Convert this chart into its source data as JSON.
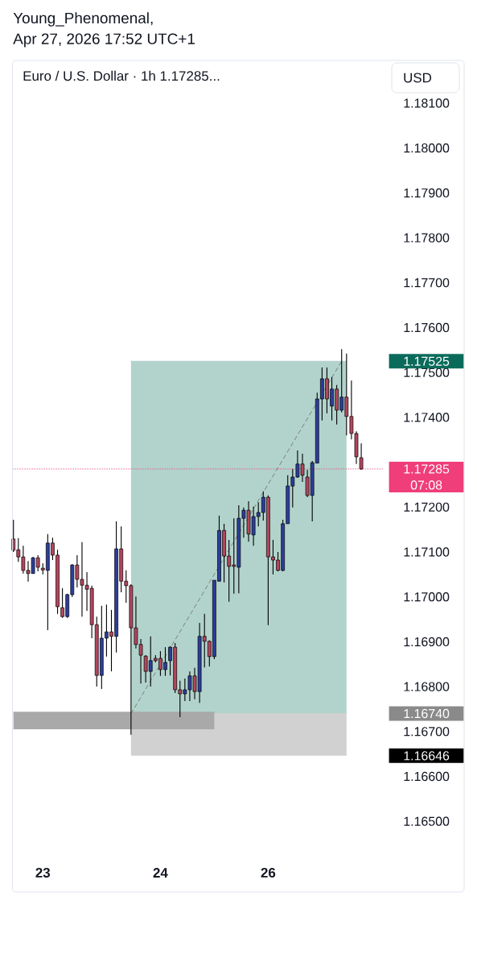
{
  "chart_data": {
    "type": "candlestick",
    "title": "Euro / U.S. Dollar · 1h 1.17285...",
    "ylabel": "USD",
    "annotations": [
      "Young_Phenomenal,",
      "Apr 27, 2026 17:52 UTC+1",
      "07:08",
      "1.17525",
      "1.16740",
      "1.16646"
    ],
    "categories": [
      null,
      null,
      null,
      null,
      null,
      null,
      "23",
      null,
      null,
      null,
      null,
      null,
      null,
      null,
      null,
      null,
      null,
      null,
      null,
      null,
      null,
      null,
      null,
      null,
      null,
      null,
      null,
      null,
      null,
      null,
      "24",
      null,
      null,
      null,
      null,
      null,
      null,
      null,
      null,
      null,
      null,
      null,
      null,
      null,
      null,
      null,
      null,
      null,
      null,
      null,
      null,
      null,
      "26",
      null,
      null,
      null,
      null,
      null,
      null,
      null,
      null,
      null,
      null,
      null,
      null,
      null,
      null,
      null,
      null,
      null,
      null,
      null
    ],
    "ohlc": [
      [
        1.17129,
        1.17172,
        1.171,
        1.17104
      ],
      [
        1.17105,
        1.17131,
        1.17078,
        1.17089
      ],
      [
        1.17089,
        1.17114,
        1.17052,
        1.17059
      ],
      [
        1.17059,
        1.1708,
        1.17034,
        1.17052
      ],
      [
        1.17052,
        1.17089,
        1.17052,
        1.17087
      ],
      [
        1.17087,
        1.17093,
        1.17057,
        1.17066
      ],
      [
        1.17064,
        1.17075,
        1.1705,
        1.1706
      ],
      [
        1.17059,
        1.1714,
        1.16926,
        1.1712
      ],
      [
        1.1712,
        1.17132,
        1.17082,
        1.17093
      ],
      [
        1.17093,
        1.17105,
        1.16962,
        1.16978
      ],
      [
        1.16976,
        1.17019,
        1.16953,
        1.16956
      ],
      [
        1.16956,
        1.17007,
        1.16953,
        1.17005
      ],
      [
        1.17005,
        1.17073,
        1.17,
        1.17071
      ],
      [
        1.17071,
        1.17093,
        1.17021,
        1.17039
      ],
      [
        1.17039,
        1.17122,
        1.16956,
        1.17026
      ],
      [
        1.17026,
        1.17055,
        1.16969,
        1.17017
      ],
      [
        1.17019,
        1.17025,
        1.16908,
        1.16938
      ],
      [
        1.16938,
        1.16956,
        1.168,
        1.16825
      ],
      [
        1.16825,
        1.1698,
        1.16795,
        1.16908
      ],
      [
        1.16908,
        1.16983,
        1.16867,
        1.16922
      ],
      [
        1.16922,
        1.16971,
        1.16834,
        1.16912
      ],
      [
        1.16912,
        1.17168,
        1.16876,
        1.17107
      ],
      [
        1.17107,
        1.17157,
        1.1701,
        1.17035
      ],
      [
        1.17035,
        1.17059,
        1.16987,
        1.17025
      ],
      [
        1.17025,
        1.17028,
        1.16693,
        1.16931
      ],
      [
        1.16931,
        1.17001,
        1.16885,
        1.16894
      ],
      [
        1.16894,
        1.16906,
        1.16807,
        1.1687
      ],
      [
        1.16868,
        1.1687,
        1.16809,
        1.16834
      ],
      [
        1.16834,
        1.16912,
        1.168,
        1.16858
      ],
      [
        1.16863,
        1.1687,
        1.16854,
        1.16858
      ],
      [
        1.16863,
        1.16879,
        1.16824,
        1.16838
      ],
      [
        1.16838,
        1.16888,
        1.16824,
        1.16854
      ],
      [
        1.16858,
        1.1689,
        1.16825,
        1.16888
      ],
      [
        1.16888,
        1.16897,
        1.16786,
        1.16793
      ],
      [
        1.16793,
        1.16813,
        1.16732,
        1.16784
      ],
      [
        1.16784,
        1.16818,
        1.16768,
        1.16793
      ],
      [
        1.16793,
        1.16834,
        1.16768,
        1.16824
      ],
      [
        1.16824,
        1.16842,
        1.16772,
        1.16789
      ],
      [
        1.16789,
        1.16942,
        1.16764,
        1.16912
      ],
      [
        1.16912,
        1.16962,
        1.16843,
        1.16901
      ],
      [
        1.16901,
        1.16903,
        1.16845,
        1.16867
      ],
      [
        1.16867,
        1.17037,
        1.16861,
        1.17037
      ],
      [
        1.17035,
        1.17181,
        1.17034,
        1.17148
      ],
      [
        1.17148,
        1.17163,
        1.17032,
        1.17091
      ],
      [
        1.17091,
        1.17127,
        1.16989,
        1.17068
      ],
      [
        1.17071,
        1.17175,
        1.17007,
        1.17068
      ],
      [
        1.17066,
        1.17204,
        1.17008,
        1.17175
      ],
      [
        1.17175,
        1.17199,
        1.17132,
        1.17193
      ],
      [
        1.17193,
        1.17213,
        1.17123,
        1.1714
      ],
      [
        1.17138,
        1.17201,
        1.17114,
        1.17179
      ],
      [
        1.17179,
        1.17211,
        1.17157,
        1.17188
      ],
      [
        1.17188,
        1.17235,
        1.1717,
        1.17222
      ],
      [
        1.17222,
        1.17226,
        1.16937,
        1.17089
      ],
      [
        1.17089,
        1.17127,
        1.1705,
        1.17082
      ],
      [
        1.17082,
        1.171,
        1.17057,
        1.17059
      ],
      [
        1.17059,
        1.17172,
        1.17057,
        1.17163
      ],
      [
        1.17163,
        1.17271,
        1.17163,
        1.17247
      ],
      [
        1.17247,
        1.17285,
        1.17199,
        1.17267
      ],
      [
        1.17267,
        1.17326,
        1.17265,
        1.17296
      ],
      [
        1.17296,
        1.17319,
        1.17256,
        1.17271
      ],
      [
        1.17267,
        1.17283,
        1.17222,
        1.17226
      ],
      [
        1.17226,
        1.17303,
        1.17168,
        1.17299
      ],
      [
        1.17298,
        1.17455,
        1.17298,
        1.17441
      ],
      [
        1.17441,
        1.17511,
        1.17393,
        1.17486
      ],
      [
        1.17486,
        1.17511,
        1.17409,
        1.17441
      ],
      [
        1.17425,
        1.1749,
        1.17393,
        1.17463
      ],
      [
        1.17463,
        1.17472,
        1.17384,
        1.17416
      ],
      [
        1.17416,
        1.17552,
        1.17411,
        1.17445
      ],
      [
        1.17445,
        1.17542,
        1.1736,
        1.17402
      ],
      [
        1.17402,
        1.17482,
        1.17351,
        1.17364
      ],
      [
        1.17364,
        1.17369,
        1.17296,
        1.17312
      ],
      [
        1.1731,
        1.17342,
        1.17283,
        1.17285
      ]
    ],
    "colors": [
      "#b4465e",
      "#b4465e",
      "#b4465e",
      "#b4465e",
      "#2c3e9c",
      "#b4465e",
      "#b4465e",
      "#2c3e9c",
      "#b4465e",
      "#b4465e",
      "#b4465e",
      "#2c3e9c",
      "#2c3e9c",
      "#b4465e",
      "#b4465e",
      "#b4465e",
      "#b4465e",
      "#b4465e",
      "#2c3e9c",
      "#2c3e9c",
      "#b4465e",
      "#2c3e9c",
      "#b4465e",
      "#b4465e",
      "#b4465e",
      "#b4465e",
      "#b4465e",
      "#b4465e",
      "#2c3e9c",
      "#b4465e",
      "#b4465e",
      "#2c3e9c",
      "#2c3e9c",
      "#b4465e",
      "#b4465e",
      "#2c3e9c",
      "#2c3e9c",
      "#b4465e",
      "#2c3e9c",
      "#b4465e",
      "#b4465e",
      "#2c3e9c",
      "#2c3e9c",
      "#b4465e",
      "#b4465e",
      "#b4465e",
      "#2c3e9c",
      "#2c3e9c",
      "#b4465e",
      "#2c3e9c",
      "#2c3e9c",
      "#2c3e9c",
      "#b4465e",
      "#b4465e",
      "#b4465e",
      "#2c3e9c",
      "#2c3e9c",
      "#2c3e9c",
      "#2c3e9c",
      "#b4465e",
      "#b4465e",
      "#2c3e9c",
      "#2c3e9c",
      "#2c3e9c",
      "#b4465e",
      "#2c3e9c",
      "#b4465e",
      "#2c3e9c",
      "#b4465e",
      "#b4465e",
      "#b4465e",
      "#b4465e"
    ],
    "series": [
      {
        "type": "line",
        "color": "#b2d3cb",
        "values": [
          null,
          null,
          null,
          null,
          null,
          null,
          null,
          null,
          null,
          null,
          null,
          null,
          null,
          null,
          null,
          null,
          null,
          null,
          null,
          null,
          null,
          null,
          null,
          null,
          1.17525,
          1.17525,
          1.17525,
          1.17525,
          1.17525,
          1.17525,
          1.17525,
          1.17525,
          1.17525,
          1.17525,
          1.17525,
          1.17525,
          1.17525,
          1.17525,
          1.17525,
          1.17525,
          1.17525,
          1.17525,
          1.17525,
          1.17525,
          1.17525,
          1.17525,
          1.17525,
          1.17525,
          1.17525,
          1.17525,
          1.17525,
          1.17525,
          1.17525,
          1.17525,
          1.17525,
          1.17525,
          1.17525,
          1.17525,
          1.17525,
          1.17525,
          1.17525,
          1.17525,
          1.17525,
          1.17525,
          1.17525,
          1.17525,
          1.17525,
          1.17525,
          1.17525,
          null,
          null,
          null
        ],
        "upper": [
          null,
          null,
          null,
          null,
          null,
          null,
          null,
          null,
          null,
          null,
          null,
          null,
          null,
          null,
          null,
          null,
          null,
          null,
          null,
          null,
          null,
          null,
          null,
          null,
          1.17525,
          1.17525,
          1.17525,
          1.17525,
          1.17525,
          1.17525,
          1.17525,
          1.17525,
          1.17525,
          1.17525,
          1.17525,
          1.17525,
          1.17525,
          1.17525,
          1.17525,
          1.17525,
          1.17525,
          1.17525,
          1.17525,
          1.17525,
          1.17525,
          1.17525,
          1.17525,
          1.17525,
          1.17525,
          1.17525,
          1.17525,
          1.17525,
          1.17525,
          1.17525,
          1.17525,
          1.17525,
          1.17525,
          1.17525,
          1.17525,
          1.17525,
          1.17525,
          1.17525,
          1.17525,
          1.17525,
          1.17525,
          1.17525,
          1.17525,
          1.17525,
          1.17525,
          null,
          null,
          null
        ],
        "lower": [
          null,
          null,
          null,
          null,
          null,
          null,
          null,
          null,
          null,
          null,
          null,
          null,
          null,
          null,
          null,
          null,
          null,
          null,
          null,
          null,
          null,
          null,
          null,
          null,
          1.1674,
          1.1674,
          1.1674,
          1.1674,
          1.1674,
          1.1674,
          1.1674,
          1.1674,
          1.1674,
          1.1674,
          1.1674,
          1.1674,
          1.1674,
          1.1674,
          1.1674,
          1.1674,
          1.1674,
          1.1674,
          1.1674,
          1.1674,
          1.1674,
          1.1674,
          1.1674,
          1.1674,
          1.1674,
          1.1674,
          1.1674,
          1.1674,
          1.1674,
          1.1674,
          1.1674,
          1.1674,
          1.1674,
          1.1674,
          1.1674,
          1.1674,
          1.1674,
          1.1674,
          1.1674,
          1.1674,
          1.1674,
          1.1674,
          1.1674,
          1.1674,
          1.1674,
          null,
          null,
          null
        ]
      },
      {
        "type": "line",
        "color": "#d1d1d1",
        "values": [
          null,
          null,
          null,
          null,
          null,
          null,
          null,
          null,
          null,
          null,
          null,
          null,
          null,
          null,
          null,
          null,
          null,
          null,
          null,
          null,
          null,
          null,
          null,
          null,
          1.1674,
          1.1674,
          1.1674,
          1.1674,
          1.1674,
          1.1674,
          1.1674,
          1.1674,
          1.1674,
          1.1674,
          1.1674,
          1.1674,
          1.1674,
          1.1674,
          1.1674,
          1.1674,
          1.1674,
          1.1674,
          1.1674,
          1.1674,
          1.1674,
          1.1674,
          1.1674,
          1.1674,
          1.1674,
          1.1674,
          1.1674,
          1.1674,
          1.1674,
          1.1674,
          1.1674,
          1.1674,
          1.1674,
          1.1674,
          1.1674,
          1.1674,
          1.1674,
          1.1674,
          1.1674,
          1.1674,
          1.1674,
          1.1674,
          1.1674,
          1.1674,
          1.1674,
          null,
          null,
          null
        ],
        "upper": [
          null,
          null,
          null,
          null,
          null,
          null,
          null,
          null,
          null,
          null,
          null,
          null,
          null,
          null,
          null,
          null,
          null,
          null,
          null,
          null,
          null,
          null,
          null,
          null,
          1.1674,
          1.1674,
          1.1674,
          1.1674,
          1.1674,
          1.1674,
          1.1674,
          1.1674,
          1.1674,
          1.1674,
          1.1674,
          1.1674,
          1.1674,
          1.1674,
          1.1674,
          1.1674,
          1.1674,
          1.1674,
          1.1674,
          1.1674,
          1.1674,
          1.1674,
          1.1674,
          1.1674,
          1.1674,
          1.1674,
          1.1674,
          1.1674,
          1.1674,
          1.1674,
          1.1674,
          1.1674,
          1.1674,
          1.1674,
          1.1674,
          1.1674,
          1.1674,
          1.1674,
          1.1674,
          1.1674,
          1.1674,
          1.1674,
          1.1674,
          1.1674,
          1.1674,
          null,
          null,
          null
        ],
        "lower": [
          null,
          null,
          null,
          null,
          null,
          null,
          null,
          null,
          null,
          null,
          null,
          null,
          null,
          null,
          null,
          null,
          null,
          null,
          null,
          null,
          null,
          null,
          null,
          null,
          1.16646,
          1.16646,
          1.16646,
          1.16646,
          1.16646,
          1.16646,
          1.16646,
          1.16646,
          1.16646,
          1.16646,
          1.16646,
          1.16646,
          1.16646,
          1.16646,
          1.16646,
          1.16646,
          1.16646,
          1.16646,
          1.16646,
          1.16646,
          1.16646,
          1.16646,
          1.16646,
          1.16646,
          1.16646,
          1.16646,
          1.16646,
          1.16646,
          1.16646,
          1.16646,
          1.16646,
          1.16646,
          1.16646,
          1.16646,
          1.16646,
          1.16646,
          1.16646,
          1.16646,
          1.16646,
          1.16646,
          1.16646,
          1.16646,
          1.16646,
          1.16646,
          1.16646,
          null,
          null,
          null
        ]
      },
      {
        "type": "line",
        "color": "#a9a9a9",
        "values": [
          1.16743,
          1.16743,
          1.16743,
          1.16743,
          1.16743,
          1.16743,
          1.16743,
          1.16743,
          1.16743,
          1.16743,
          1.16743,
          1.16743,
          1.16743,
          1.16743,
          1.16743,
          1.16743,
          1.16743,
          1.16743,
          1.16743,
          1.16743,
          1.16743,
          1.16743,
          1.16743,
          1.16743,
          1.16743,
          1.16743,
          1.16743,
          1.16743,
          1.16743,
          1.16743,
          1.16743,
          1.16743,
          1.16743,
          1.16743,
          1.16743,
          1.16743,
          1.16743,
          1.16743,
          1.16743,
          1.16743,
          1.16743,
          1.16743,
          null,
          null,
          null,
          null,
          null,
          null,
          null,
          null,
          null,
          null,
          null,
          null,
          null,
          null,
          null,
          null,
          null,
          null,
          null,
          null,
          null,
          null,
          null,
          null,
          null,
          null,
          null,
          null,
          null,
          null
        ],
        "upper": [
          1.16743,
          1.16743,
          1.16743,
          1.16743,
          1.16743,
          1.16743,
          1.16743,
          1.16743,
          1.16743,
          1.16743,
          1.16743,
          1.16743,
          1.16743,
          1.16743,
          1.16743,
          1.16743,
          1.16743,
          1.16743,
          1.16743,
          1.16743,
          1.16743,
          1.16743,
          1.16743,
          1.16743,
          1.16743,
          1.16743,
          1.16743,
          1.16743,
          1.16743,
          1.16743,
          1.16743,
          1.16743,
          1.16743,
          1.16743,
          1.16743,
          1.16743,
          1.16743,
          1.16743,
          1.16743,
          1.16743,
          1.16743,
          1.16743,
          null,
          null,
          null,
          null,
          null,
          null,
          null,
          null,
          null,
          null,
          null,
          null,
          null,
          null,
          null,
          null,
          null,
          null,
          null,
          null,
          null,
          null,
          null,
          null,
          null,
          null,
          null,
          null,
          null,
          null
        ],
        "lower": [
          1.16705,
          1.16705,
          1.16705,
          1.16705,
          1.16705,
          1.16705,
          1.16705,
          1.16705,
          1.16705,
          1.16705,
          1.16705,
          1.16705,
          1.16705,
          1.16705,
          1.16705,
          1.16705,
          1.16705,
          1.16705,
          1.16705,
          1.16705,
          1.16705,
          1.16705,
          1.16705,
          1.16705,
          1.16705,
          1.16705,
          1.16705,
          1.16705,
          1.16705,
          1.16705,
          1.16705,
          1.16705,
          1.16705,
          1.16705,
          1.16705,
          1.16705,
          1.16705,
          1.16705,
          1.16705,
          1.16705,
          1.16705,
          1.16705,
          null,
          null,
          null,
          null,
          null,
          null,
          null,
          null,
          null,
          null,
          null,
          null,
          null,
          null,
          null,
          null,
          null,
          null,
          null,
          null,
          null,
          null,
          null,
          null,
          null,
          null,
          null,
          null,
          null,
          null
        ]
      },
      {
        "type": "line",
        "color": "#7d7d7d",
        "line_style": "dashed",
        "values": [
          null,
          null,
          null,
          null,
          null,
          null,
          null,
          null,
          null,
          null,
          null,
          null,
          null,
          null,
          null,
          null,
          null,
          null,
          null,
          null,
          null,
          null,
          null,
          null,
          1.1674,
          null,
          null,
          null,
          null,
          null,
          null,
          null,
          null,
          null,
          null,
          null,
          null,
          null,
          null,
          null,
          null,
          null,
          null,
          null,
          null,
          null,
          null,
          null,
          null,
          null,
          null,
          null,
          null,
          null,
          null,
          null,
          null,
          null,
          null,
          null,
          null,
          null,
          null,
          null,
          null,
          null,
          null,
          1.17525,
          null,
          null,
          null,
          null
        ]
      }
    ],
    "ref_lines": [
      {
        "axis": "y",
        "value": 1.17285,
        "label": "1.17285",
        "color": "#ef3e7a",
        "line_style": "dotted"
      }
    ],
    "ylim": [
      1.165,
      1.181
    ],
    "yticks": [
      {
        "value": 1.165,
        "label": "1.16500"
      },
      {
        "value": 1.166,
        "label": "1.16600"
      },
      {
        "value": 1.167,
        "label": "1.16700"
      },
      {
        "value": 1.168,
        "label": "1.16800"
      },
      {
        "value": 1.169,
        "label": "1.16900"
      },
      {
        "value": 1.17,
        "label": "1.17000"
      },
      {
        "value": 1.171,
        "label": "1.17100"
      },
      {
        "value": 1.172,
        "label": "1.17200"
      },
      {
        "value": 1.174,
        "label": "1.17400"
      },
      {
        "value": 1.175,
        "label": "1.17500"
      },
      {
        "value": 1.176,
        "label": "1.17600"
      },
      {
        "value": 1.177,
        "label": "1.17700"
      },
      {
        "value": 1.178,
        "label": "1.17800"
      },
      {
        "value": 1.179,
        "label": "1.17900"
      },
      {
        "value": 1.18,
        "label": "1.18000"
      },
      {
        "value": 1.181,
        "label": "1.18100"
      }
    ]
  }
}
